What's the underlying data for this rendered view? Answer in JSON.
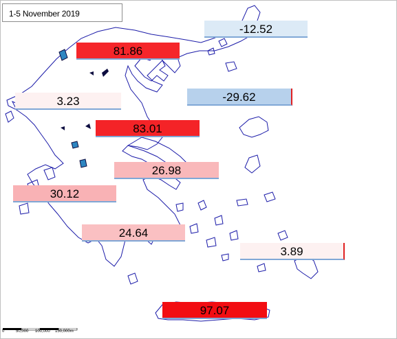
{
  "title": "1-5 November 2019",
  "regions": [
    {
      "id": "east-macedonia-thrace",
      "value": "-12.52",
      "fill": "#dceaf6"
    },
    {
      "id": "central-macedonia",
      "value": "81.86",
      "fill": "#f5262a"
    },
    {
      "id": "western-macedonia",
      "value": "3.23",
      "fill": "#fdf1f1"
    },
    {
      "id": "north-aegean",
      "value": "-29.62",
      "fill": "#b7d1ec"
    },
    {
      "id": "thessaly",
      "value": "83.01",
      "fill": "#f42327"
    },
    {
      "id": "central-greece",
      "value": "26.98",
      "fill": "#f9b8ba"
    },
    {
      "id": "western-greece",
      "value": "30.12",
      "fill": "#f9b2b5"
    },
    {
      "id": "peloponnese",
      "value": "24.64",
      "fill": "#fac0c2"
    },
    {
      "id": "south-aegean",
      "value": "3.89",
      "fill": "#fdf1f1"
    },
    {
      "id": "crete",
      "value": "97.07",
      "fill": "#f20d12"
    }
  ],
  "scale": {
    "labels": [
      "0",
      "50,000",
      "100,000",
      "150,000m"
    ]
  },
  "colors": {
    "outline": "#1a1aa8",
    "lake": "#2e86c1",
    "frame": "#bfbfbf"
  }
}
